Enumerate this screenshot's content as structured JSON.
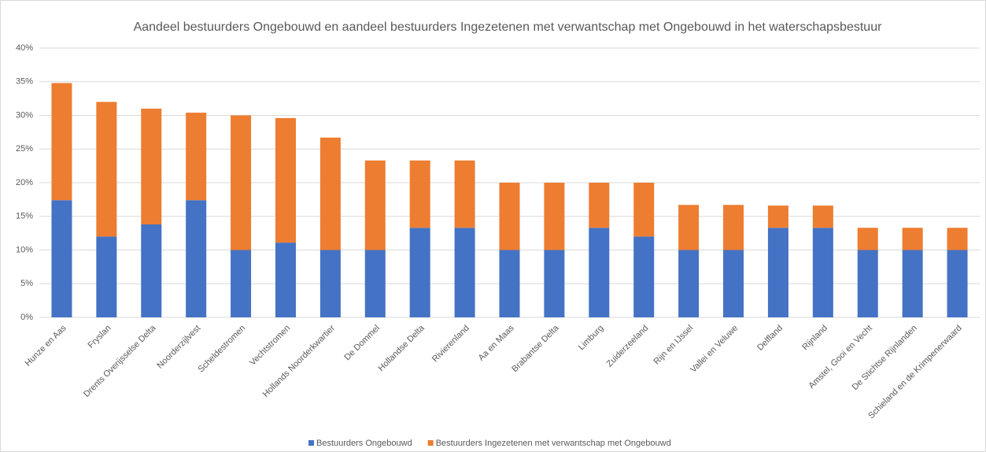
{
  "chart_data": {
    "type": "stacked_bar",
    "title": "Aandeel bestuurders Ongebouwd en aandeel bestuurders Ingezetenen met verwantschap met Ongebouwd in het waterschapsbestuur",
    "categories": [
      "Hunze en Aas",
      "Fryslan",
      "Drents Overijsselse Delta",
      "Noorderzijlvest",
      "Scheldestromen",
      "Vechtstromen",
      "Hollands Noorderkwartier",
      "De Dommel",
      "Hollandse Delta",
      "Rivierenland",
      "Aa en Maas",
      "Brabantse Delta",
      "Limburg",
      "Zuiderzeeland",
      "Rijn en IJssel",
      "Vallei en Veluwe",
      "Delfland",
      "Rijnland",
      "Amstel, Gooi en Vecht",
      "De Stichtse Rijnlanden",
      "Schieland en de Krimpenerwaard"
    ],
    "series": [
      {
        "name": "Bestuurders Ongebouwd",
        "color": "#4472c4",
        "values": [
          17.4,
          12,
          13.8,
          17.4,
          10,
          11.1,
          10,
          10,
          13.3,
          13.3,
          10,
          10,
          13.3,
          12,
          10,
          10,
          13.3,
          13.3,
          10,
          10,
          10
        ]
      },
      {
        "name": "Bestuurders Ingezetenen met verwantschap met Ongebouwd",
        "color": "#ed7d31",
        "values": [
          17.4,
          20,
          17.2,
          13,
          20,
          18.5,
          16.7,
          13.3,
          10,
          10,
          10,
          10,
          6.7,
          8,
          6.7,
          6.7,
          3.3,
          3.3,
          3.3,
          3.3,
          3.3
        ]
      }
    ],
    "ylim": [
      0,
      40
    ],
    "yticks": [
      {
        "value": 0,
        "label": "0%"
      },
      {
        "value": 5,
        "label": "5%"
      },
      {
        "value": 10,
        "label": "10%"
      },
      {
        "value": 15,
        "label": "15%"
      },
      {
        "value": 20,
        "label": "20%"
      },
      {
        "value": 25,
        "label": "25%"
      },
      {
        "value": 30,
        "label": "30%"
      },
      {
        "value": 35,
        "label": "35%"
      },
      {
        "value": 40,
        "label": "40%"
      }
    ],
    "grid": true
  }
}
